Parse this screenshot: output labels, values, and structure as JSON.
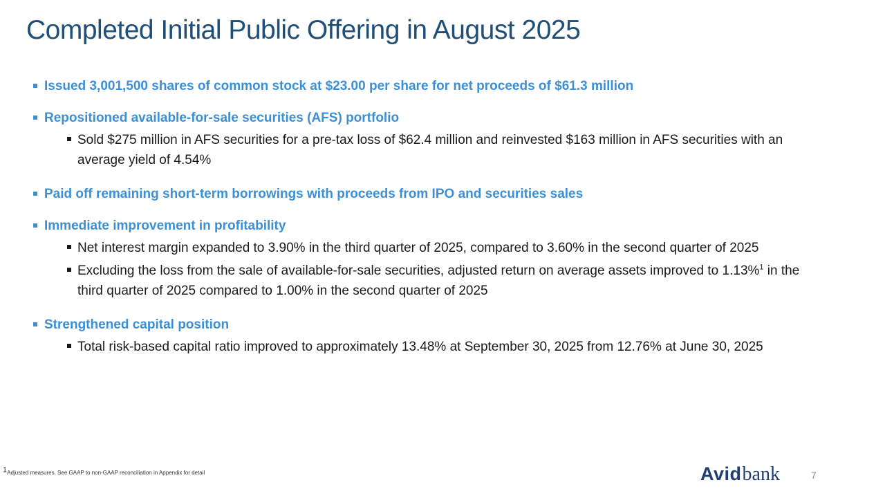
{
  "title": "Completed Initial Public Offering in August 2025",
  "bullets": [
    {
      "text": "Issued 3,001,500 shares of common stock at $23.00 per share for net proceeds of $61.3 million"
    },
    {
      "text": "Repositioned available-for-sale securities (AFS) portfolio",
      "sub": [
        "Sold $275 million in AFS securities for a pre-tax loss of $62.4 million and reinvested $163 million in AFS securities with an average yield of 4.54%"
      ]
    },
    {
      "text": "Paid off remaining short-term borrowings with proceeds from IPO and securities sales"
    },
    {
      "text": "Immediate improvement in profitability",
      "sub": [
        "Net interest margin expanded to 3.90% in the third quarter of 2025, compared to 3.60% in the second quarter of 2025",
        {
          "before": "Excluding the loss from the sale of available-for-sale securities, adjusted return on average assets improved to 1.13%",
          "sup": "1",
          "after": " in the third quarter of 2025 compared to 1.00% in the second quarter of 2025"
        }
      ]
    },
    {
      "text": "Strengthened capital position",
      "sub": [
        "Total risk-based capital ratio improved to approximately 13.48% at September 30, 2025 from 12.76% at June 30, 2025"
      ]
    }
  ],
  "footnote": {
    "sup": "1",
    "text": "Adjusted measures. See GAAP to non-GAAP reconciliation in Appendix for detail"
  },
  "logo": {
    "part1": "Avid",
    "part2": "bank"
  },
  "page_number": "7",
  "colors": {
    "title": "#1f4e79",
    "accent": "#3c8fd6",
    "body": "#1a1a1a",
    "logo": "#1f3f73"
  }
}
